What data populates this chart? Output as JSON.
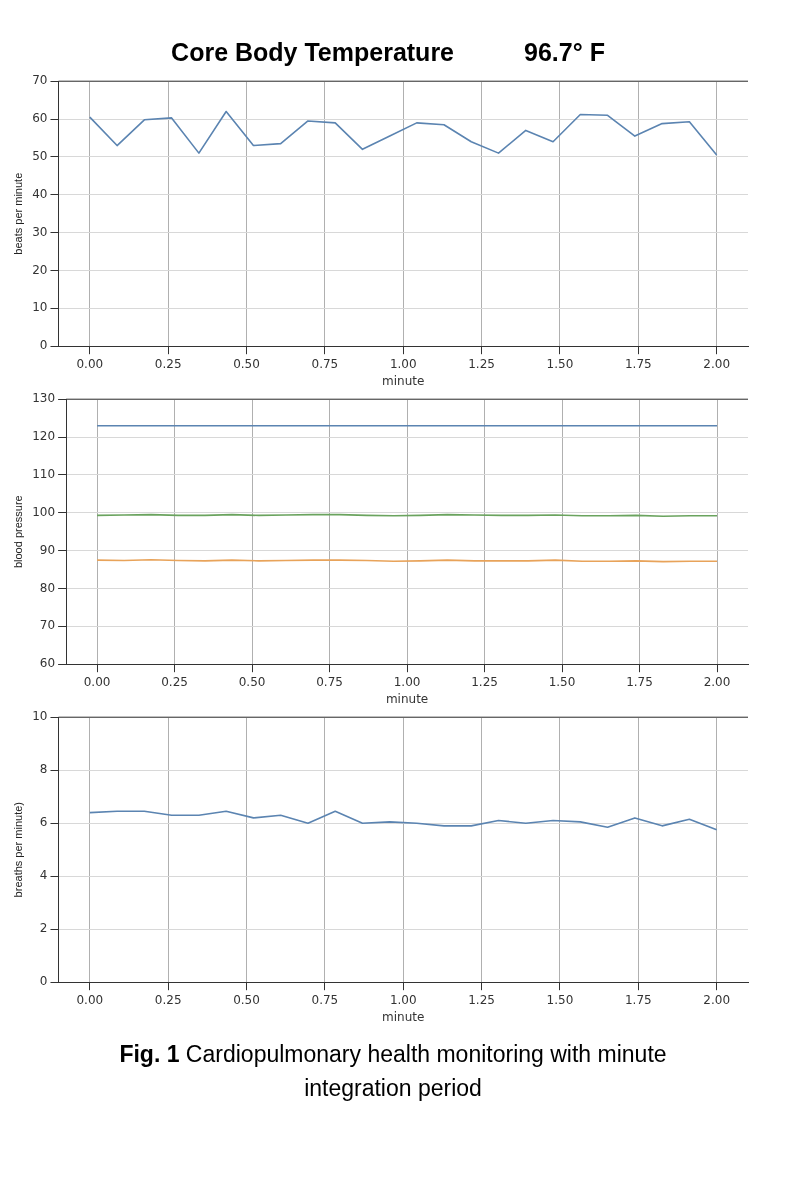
{
  "chart_data": [
    {
      "type": "line",
      "title": "Core Body Temperature",
      "subtitle": "96.7° F",
      "ylabel": "beats per minute",
      "xlabel": "minute",
      "x": [
        0,
        0.087,
        0.174,
        0.261,
        0.348,
        0.435,
        0.522,
        0.609,
        0.696,
        0.783,
        0.87,
        0.957,
        1.043,
        1.13,
        1.217,
        1.304,
        1.391,
        1.478,
        1.565,
        1.652,
        1.739,
        1.826,
        1.913,
        2.0
      ],
      "series": [
        {
          "color": "#5b84b1",
          "values": [
            60.5,
            53,
            59.8,
            60.3,
            51,
            62,
            53,
            53.5,
            59.5,
            59,
            52,
            55.5,
            59,
            58.5,
            54,
            51,
            57,
            54,
            61.2,
            61,
            55.5,
            58.8,
            59.3,
            50.5
          ]
        }
      ],
      "xlim": [
        -0.1,
        2.1
      ],
      "xticks": [
        {
          "value": 0,
          "label": "0.00"
        },
        {
          "value": 0.25,
          "label": "0.25"
        },
        {
          "value": 0.5,
          "label": "0.50"
        },
        {
          "value": 0.75,
          "label": "0.75"
        },
        {
          "value": 1,
          "label": "1.00"
        },
        {
          "value": 1.25,
          "label": "1.25"
        },
        {
          "value": 1.5,
          "label": "1.50"
        },
        {
          "value": 1.75,
          "label": "1.75"
        },
        {
          "value": 2,
          "label": "2.00"
        }
      ],
      "ylim": [
        0,
        70
      ],
      "yticks": [
        0,
        10,
        20,
        30,
        40,
        50,
        60,
        70
      ],
      "grid": true,
      "legend": false
    },
    {
      "type": "line",
      "ylabel": "blood pressure",
      "xlabel": "minute",
      "x": [
        0,
        0.087,
        0.174,
        0.261,
        0.348,
        0.435,
        0.522,
        0.609,
        0.696,
        0.783,
        0.87,
        0.957,
        1.043,
        1.13,
        1.217,
        1.304,
        1.391,
        1.478,
        1.565,
        1.652,
        1.739,
        1.826,
        1.913,
        2.0
      ],
      "series": [
        {
          "color": "#5b84b1",
          "values": [
            123,
            123,
            123,
            123,
            123,
            123,
            123,
            123,
            123,
            123,
            123,
            123,
            123,
            123,
            123,
            123,
            123,
            123,
            123,
            123,
            123,
            123,
            123,
            123
          ]
        },
        {
          "color": "#e8a35a",
          "values": [
            87.5,
            87.4,
            87.6,
            87.4,
            87.3,
            87.5,
            87.3,
            87.4,
            87.5,
            87.5,
            87.4,
            87.2,
            87.3,
            87.5,
            87.3,
            87.3,
            87.3,
            87.5,
            87.2,
            87.2,
            87.3,
            87.1,
            87.2,
            87.2
          ]
        },
        {
          "color": "#6aa35e",
          "values": [
            99.3,
            99.4,
            99.5,
            99.3,
            99.3,
            99.5,
            99.3,
            99.4,
            99.5,
            99.5,
            99.3,
            99.2,
            99.3,
            99.5,
            99.4,
            99.3,
            99.3,
            99.4,
            99.2,
            99.2,
            99.3,
            99.1,
            99.2,
            99.2
          ]
        }
      ],
      "xlim": [
        -0.1,
        2.1
      ],
      "xticks": [
        {
          "value": 0,
          "label": "0.00"
        },
        {
          "value": 0.25,
          "label": "0.25"
        },
        {
          "value": 0.5,
          "label": "0.50"
        },
        {
          "value": 0.75,
          "label": "0.75"
        },
        {
          "value": 1,
          "label": "1.00"
        },
        {
          "value": 1.25,
          "label": "1.25"
        },
        {
          "value": 1.5,
          "label": "1.50"
        },
        {
          "value": 1.75,
          "label": "1.75"
        },
        {
          "value": 2,
          "label": "2.00"
        }
      ],
      "ylim": [
        60,
        130
      ],
      "yticks": [
        60,
        70,
        80,
        90,
        100,
        110,
        120,
        130
      ],
      "grid": true,
      "legend": false
    },
    {
      "type": "line",
      "ylabel": "breaths per minute)",
      "xlabel": "minute",
      "x": [
        0,
        0.087,
        0.174,
        0.261,
        0.348,
        0.435,
        0.522,
        0.609,
        0.696,
        0.783,
        0.87,
        0.957,
        1.043,
        1.13,
        1.217,
        1.304,
        1.391,
        1.478,
        1.565,
        1.652,
        1.739,
        1.826,
        1.913,
        2.0
      ],
      "series": [
        {
          "color": "#5b84b1",
          "values": [
            6.4,
            6.45,
            6.45,
            6.3,
            6.3,
            6.45,
            6.2,
            6.3,
            6.0,
            6.45,
            6.0,
            6.05,
            6.0,
            5.9,
            5.9,
            6.1,
            6.0,
            6.1,
            6.05,
            5.85,
            6.2,
            5.9,
            6.15,
            5.75
          ]
        }
      ],
      "xlim": [
        -0.1,
        2.1
      ],
      "xticks": [
        {
          "value": 0,
          "label": "0.00"
        },
        {
          "value": 0.25,
          "label": "0.25"
        },
        {
          "value": 0.5,
          "label": "0.50"
        },
        {
          "value": 0.75,
          "label": "0.75"
        },
        {
          "value": 1,
          "label": "1.00"
        },
        {
          "value": 1.25,
          "label": "1.25"
        },
        {
          "value": 1.5,
          "label": "1.50"
        },
        {
          "value": 1.75,
          "label": "1.75"
        },
        {
          "value": 2,
          "label": "2.00"
        }
      ],
      "ylim": [
        0,
        10
      ],
      "yticks": [
        0,
        2,
        4,
        6,
        8,
        10
      ],
      "grid": true,
      "legend": false,
      "annotations": [
        "Fig. 1",
        "Cardiopulmonary health monitoring with minute integration period"
      ]
    }
  ]
}
